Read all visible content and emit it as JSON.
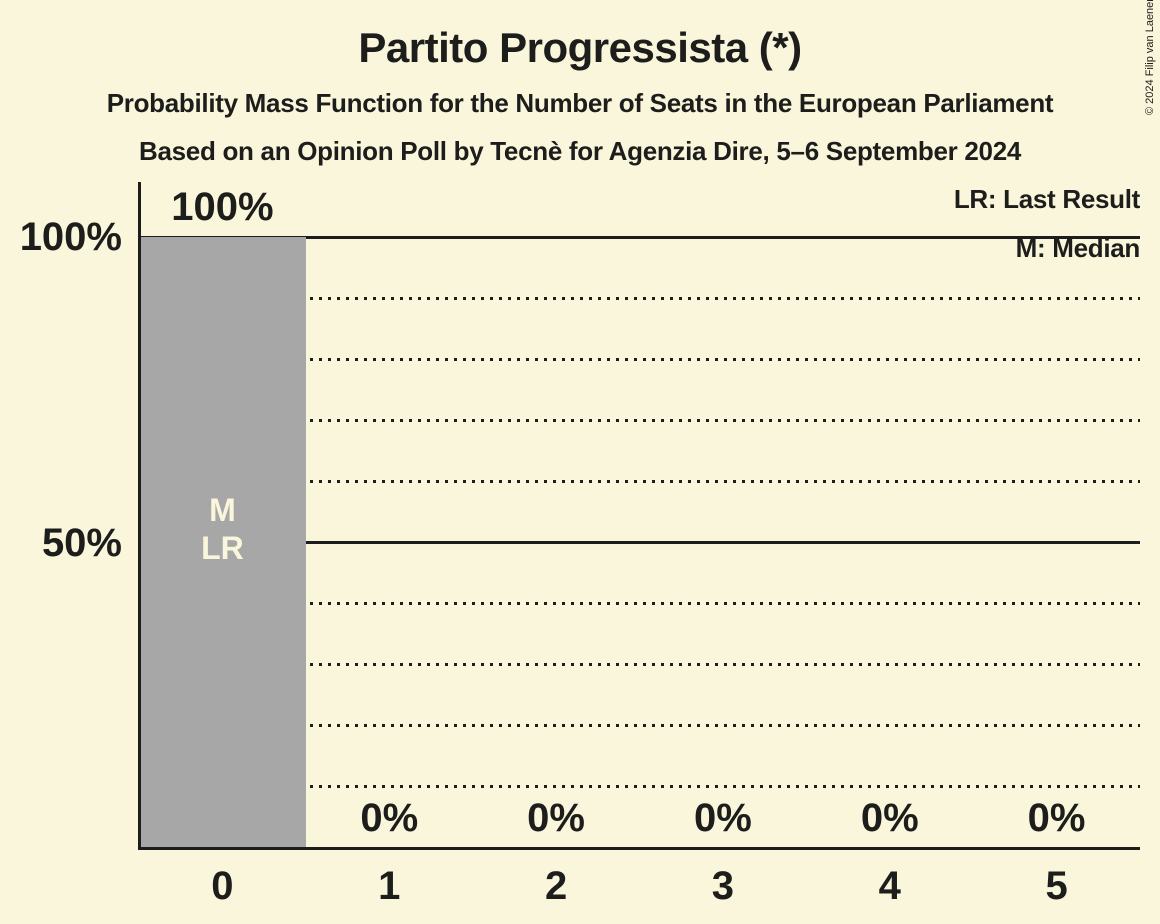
{
  "title": "Partito Progressista (*)",
  "subtitle": "Probability Mass Function for the Number of Seats in the European Parliament",
  "source_line": "Based on an Opinion Poll by Tecnè for Agenzia Dire, 5–6 September 2024",
  "copyright": "© 2024 Filip van Laenen",
  "legend": {
    "last_result": "LR: Last Result",
    "median": "M: Median"
  },
  "chart_data": {
    "type": "bar",
    "title": "Partito Progressista (*)",
    "xlabel": "",
    "ylabel": "",
    "categories": [
      "0",
      "1",
      "2",
      "3",
      "4",
      "5"
    ],
    "values": [
      100,
      0,
      0,
      0,
      0,
      0
    ],
    "bar_value_labels": [
      "100%",
      "0%",
      "0%",
      "0%",
      "0%",
      "0%"
    ],
    "bar_annotations": [
      [
        "M",
        "LR"
      ],
      [],
      [],
      [],
      [],
      []
    ],
    "ylim": [
      0,
      100
    ],
    "y_axis_ticks": [
      {
        "value": 100,
        "label": "100%"
      },
      {
        "value": 50,
        "label": "50%"
      }
    ],
    "solid_gridlines_pct": [
      100,
      50
    ],
    "dotted_gridlines_pct": [
      90,
      80,
      70,
      60,
      40,
      30,
      20,
      10
    ],
    "grid": "horizontal",
    "legend_position": "top-right",
    "colors": {
      "background": "#faf6dc",
      "bar": "#a7a7a7",
      "text": "#1d1d1b",
      "bar_annotation_text": "#faf6dc"
    }
  }
}
